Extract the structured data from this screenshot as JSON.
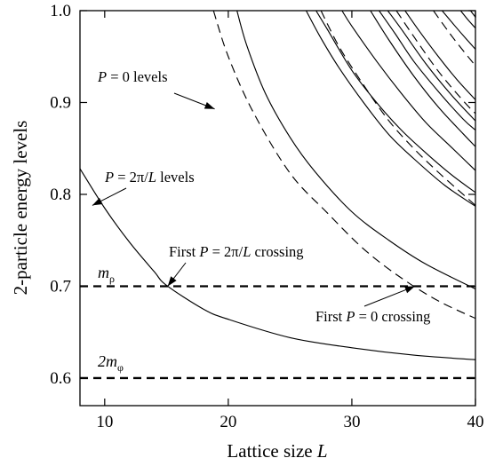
{
  "chart_data": {
    "type": "line",
    "xlabel": {
      "text": "Lattice size ",
      "var": "L"
    },
    "ylabel": "2-particle energy levels",
    "xlim": [
      8,
      40
    ],
    "ylim": [
      0.57,
      1.0
    ],
    "xticks": [
      10,
      20,
      30,
      40
    ],
    "yticks": [
      0.6,
      0.7,
      0.8,
      0.9,
      1.0
    ],
    "xtick_labels": [
      "10",
      "20",
      "30",
      "40"
    ],
    "ytick_labels": [
      "0.6",
      "0.7",
      "0.8",
      "0.9",
      "1.0"
    ],
    "grid": false,
    "reference_lines": [
      {
        "label_main": "m",
        "label_sub": "ρ",
        "y": 0.7
      },
      {
        "label_main": "2m",
        "label_sub": "φ",
        "y": 0.6
      }
    ],
    "series": [
      {
        "style": "solid",
        "x": [
          8,
          10,
          12,
          14,
          15,
          18,
          20,
          25,
          30,
          35,
          40
        ],
        "y": [
          0.828,
          0.785,
          0.748,
          0.716,
          0.701,
          0.675,
          0.664,
          0.644,
          0.633,
          0.625,
          0.62
        ]
      },
      {
        "style": "solid",
        "x": [
          20.7,
          21.5,
          23,
          25,
          27,
          30,
          33,
          36,
          40
        ],
        "y": [
          1.0,
          0.962,
          0.91,
          0.862,
          0.825,
          0.781,
          0.75,
          0.724,
          0.697
        ]
      },
      {
        "style": "dashed",
        "x": [
          18.8,
          20,
          22,
          25,
          28,
          31,
          34,
          37,
          40
        ],
        "y": [
          1.0,
          0.95,
          0.89,
          0.823,
          0.78,
          0.74,
          0.709,
          0.684,
          0.665
        ]
      },
      {
        "style": "solid",
        "x": [
          26.3,
          27.5,
          29,
          31,
          33,
          35,
          37.5,
          40
        ],
        "y": [
          1.0,
          0.97,
          0.937,
          0.899,
          0.865,
          0.839,
          0.81,
          0.787
        ]
      },
      {
        "style": "solid",
        "x": [
          27.1,
          28,
          30,
          32,
          34,
          36,
          38,
          40
        ],
        "y": [
          1.0,
          0.98,
          0.935,
          0.9,
          0.87,
          0.845,
          0.822,
          0.802
        ]
      },
      {
        "style": "dashed",
        "x": [
          27.5,
          29,
          31,
          33,
          35,
          37,
          39,
          40
        ],
        "y": [
          1.0,
          0.96,
          0.918,
          0.88,
          0.85,
          0.824,
          0.8,
          0.788
        ]
      },
      {
        "style": "solid",
        "x": [
          29.2,
          30,
          32,
          34,
          36,
          38,
          40
        ],
        "y": [
          1.0,
          0.983,
          0.945,
          0.91,
          0.878,
          0.852,
          0.826
        ]
      },
      {
        "style": "solid",
        "x": [
          31.5,
          33,
          35,
          37,
          39,
          40
        ],
        "y": [
          1.0,
          0.968,
          0.929,
          0.895,
          0.866,
          0.852
        ]
      },
      {
        "style": "solid",
        "x": [
          32.2,
          33.5,
          35,
          37,
          39,
          40
        ],
        "y": [
          1.0,
          0.975,
          0.945,
          0.912,
          0.882,
          0.87
        ]
      },
      {
        "style": "solid",
        "x": [
          32.9,
          34,
          36,
          38,
          40
        ],
        "y": [
          1.0,
          0.98,
          0.942,
          0.909,
          0.88
        ],
        "color": "#b0306a"
      },
      {
        "style": "dashed",
        "x": [
          33.6,
          35,
          37,
          39,
          40
        ],
        "y": [
          1.0,
          0.972,
          0.934,
          0.902,
          0.888
        ]
      },
      {
        "style": "solid",
        "x": [
          34.3,
          35.5,
          37,
          38.5,
          40
        ],
        "y": [
          1.0,
          0.977,
          0.95,
          0.925,
          0.903
        ]
      },
      {
        "style": "dashed",
        "x": [
          36.6,
          37.5,
          38.5,
          40
        ],
        "y": [
          1.0,
          0.983,
          0.965,
          0.94
        ]
      },
      {
        "style": "solid",
        "x": [
          37.3,
          38.3,
          39.2,
          40
        ],
        "y": [
          1.0,
          0.984,
          0.97,
          0.958
        ]
      },
      {
        "style": "solid",
        "x": [
          38.8,
          39.4,
          40
        ],
        "y": [
          1.0,
          0.99,
          0.981
        ]
      },
      {
        "style": "solid",
        "x": [
          39.6,
          40
        ],
        "y": [
          1.0,
          0.993
        ]
      }
    ],
    "annotations": [
      {
        "id": "p0-levels",
        "parts": [
          {
            "t": "P",
            "i": true
          },
          {
            "t": " = 0 levels"
          }
        ],
        "arrow_to": [
          18.9,
          0.893
        ]
      },
      {
        "id": "p2pi-levels",
        "parts": [
          {
            "t": "P",
            "i": true
          },
          {
            "t": " = 2π/"
          },
          {
            "t": "L",
            "i": true
          },
          {
            "t": " levels"
          }
        ],
        "arrow_to": [
          9.0,
          0.788
        ]
      },
      {
        "id": "first-p2pi-cross",
        "parts": [
          {
            "t": "First "
          },
          {
            "t": "P",
            "i": true
          },
          {
            "t": " = 2π/"
          },
          {
            "t": "L",
            "i": true
          },
          {
            "t": " crossing"
          }
        ],
        "arrow_to": [
          15.1,
          0.7
        ]
      },
      {
        "id": "first-p0-cross",
        "parts": [
          {
            "t": "First "
          },
          {
            "t": "P",
            "i": true
          },
          {
            "t": " = 0 crossing"
          }
        ],
        "arrow_to": [
          35.1,
          0.7
        ]
      }
    ]
  }
}
